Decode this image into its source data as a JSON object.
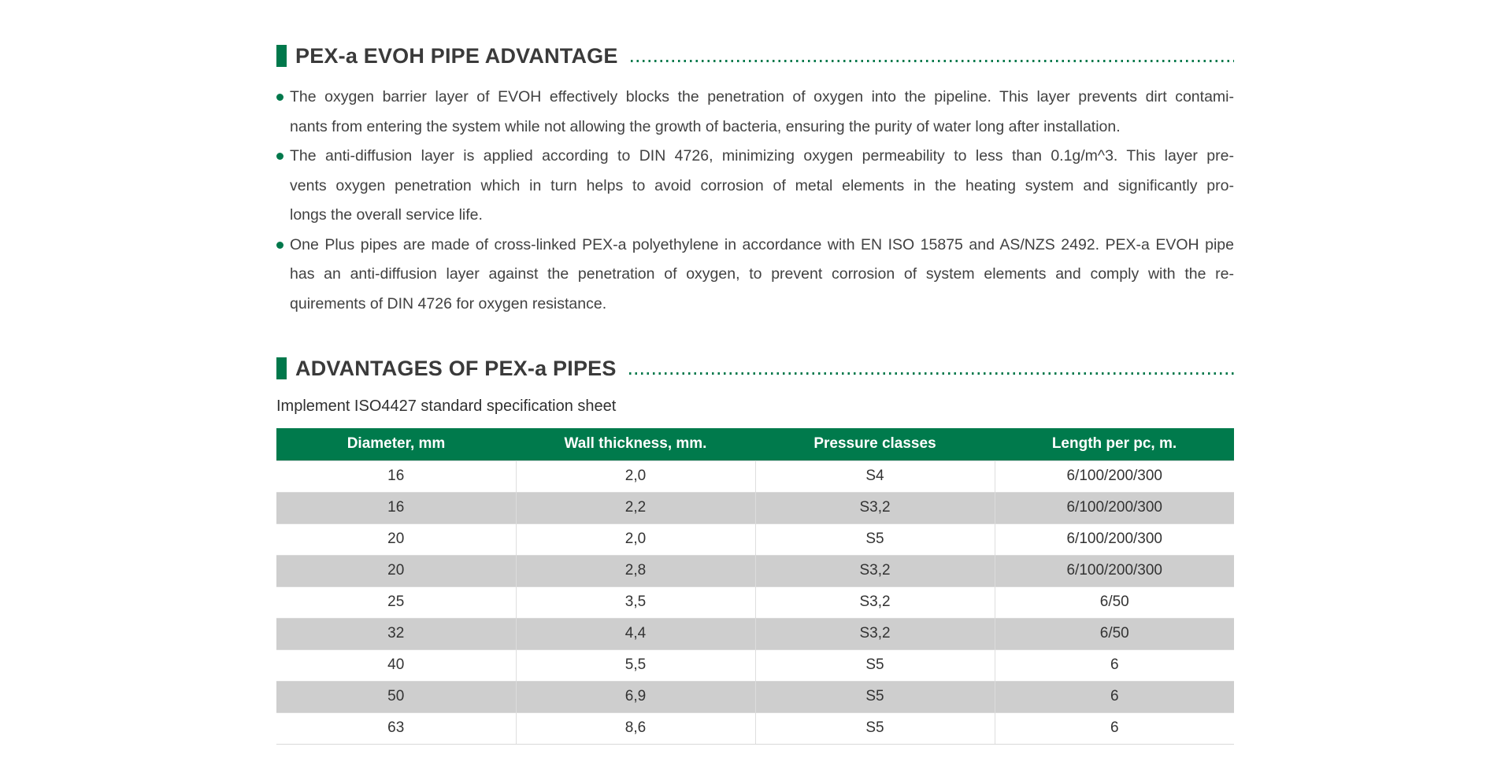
{
  "colors": {
    "accent_green": "#00784b",
    "table_header_green": "#007a4c",
    "row_gray": "#cecece",
    "heading_text": "#3a3a3a",
    "body_text": "#414141"
  },
  "sections": [
    {
      "title": "PEX-a EVOH PIPE ADVANTAGE",
      "bullets": [
        {
          "lines": [
            "The oxygen barrier layer of EVOH effectively blocks the penetration of oxygen into the pipeline. This layer prevents dirt contami-",
            "nants from entering the system while not allowing the growth of bacteria, ensuring the purity of water long after installation."
          ]
        },
        {
          "lines": [
            "The anti-diffusion layer is applied according to DIN 4726, minimizing oxygen permeability to less than 0.1g/m^3. This layer pre-",
            "vents oxygen penetration which in turn helps to avoid corrosion of metal elements in the heating system and significantly pro-",
            "longs the overall service life."
          ]
        },
        {
          "lines": [
            "One Plus pipes are made of cross-linked PEX-a polyethylene in accordance with EN ISO 15875 and AS/NZS 2492. PEX-a EVOH pipe",
            "has an anti-diffusion layer against the penetration of oxygen, to prevent corrosion of system elements and comply with the re-",
            "quirements of DIN 4726 for oxygen resistance."
          ]
        }
      ]
    },
    {
      "title": "ADVANTAGES OF PEX-a PIPES",
      "subtitle": "Implement ISO4427 standard specification sheet",
      "table": {
        "headers": [
          "Diameter, mm",
          "Wall thickness, mm.",
          "Pressure classes",
          "Length per pc, m."
        ],
        "rows": [
          [
            "16",
            "2,0",
            "S4",
            "6/100/200/300"
          ],
          [
            "16",
            "2,2",
            "S3,2",
            "6/100/200/300"
          ],
          [
            "20",
            "2,0",
            "S5",
            "6/100/200/300"
          ],
          [
            "20",
            "2,8",
            "S3,2",
            "6/100/200/300"
          ],
          [
            "25",
            "3,5",
            "S3,2",
            "6/50"
          ],
          [
            "32",
            "4,4",
            "S3,2",
            "6/50"
          ],
          [
            "40",
            "5,5",
            "S5",
            "6"
          ],
          [
            "50",
            "6,9",
            "S5",
            "6"
          ],
          [
            "63",
            "8,6",
            "S5",
            "6"
          ]
        ]
      }
    }
  ]
}
